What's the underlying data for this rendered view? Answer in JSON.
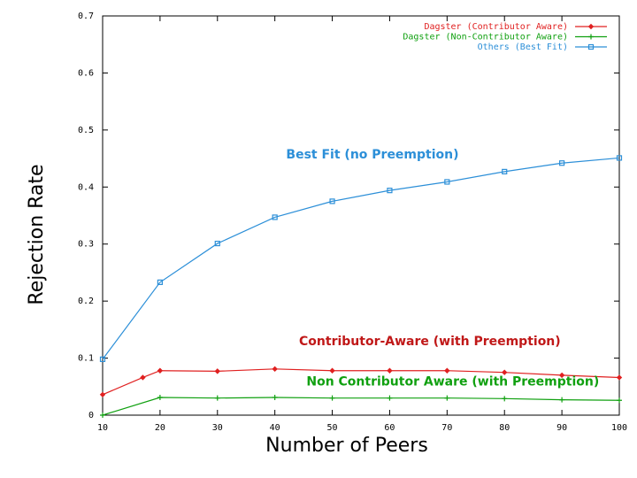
{
  "chart_data": {
    "type": "line",
    "xlabel": "Number of Peers",
    "ylabel": "Rejection Rate",
    "xlim": [
      10,
      100
    ],
    "ylim": [
      0,
      0.7
    ],
    "xticks": [
      "10",
      "20",
      "30",
      "40",
      "50",
      "60",
      "70",
      "80",
      "90",
      "100"
    ],
    "yticks": [
      "0",
      "0.1",
      "0.2",
      "0.3",
      "0.4",
      "0.5",
      "0.6",
      "0.7"
    ],
    "legend_position": "top-right",
    "grid": false,
    "series": [
      {
        "name": "Dagster (Contributor Aware)",
        "color": "#e02020",
        "marker": "diamond",
        "x": [
          10,
          17,
          20,
          30,
          40,
          50,
          60,
          70,
          80,
          90,
          100
        ],
        "values": [
          0.036,
          0.066,
          0.078,
          0.077,
          0.081,
          0.078,
          0.078,
          0.078,
          0.075,
          0.07,
          0.066
        ]
      },
      {
        "name": "Dagster (Non-Contributor Aware)",
        "color": "#10a010",
        "marker": "plus",
        "x": [
          10,
          20,
          30,
          40,
          50,
          60,
          70,
          80,
          90,
          100
        ],
        "values": [
          0.0,
          0.031,
          0.03,
          0.031,
          0.03,
          0.03,
          0.03,
          0.029,
          0.027,
          0.026
        ]
      },
      {
        "name": "Others (Best Fit)",
        "color": "#2c8fd8",
        "marker": "square",
        "x": [
          10,
          20,
          30,
          40,
          50,
          60,
          70,
          80,
          90,
          100
        ],
        "values": [
          0.098,
          0.233,
          0.301,
          0.347,
          0.375,
          0.394,
          0.409,
          0.427,
          0.442,
          0.451
        ]
      }
    ],
    "annotations": [
      {
        "text": "Best Fit (no Preemption)",
        "x": 57,
        "y": 0.45,
        "color": "#2c8fd8"
      },
      {
        "text": "Contributor-Aware (with Preemption)",
        "x": 67,
        "y": 0.123,
        "color": "#c01818"
      },
      {
        "text": "Non Contributor Aware (with Preemption)",
        "x": 71,
        "y": 0.052,
        "color": "#10a010"
      }
    ]
  }
}
